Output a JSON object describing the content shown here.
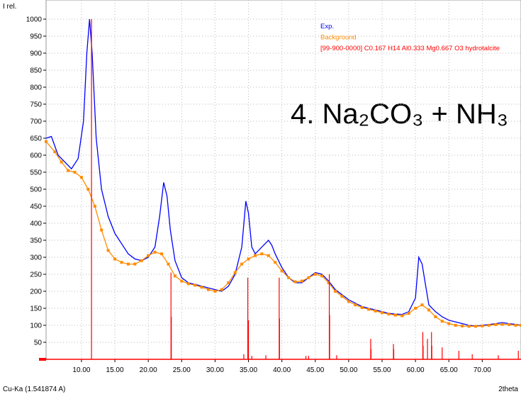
{
  "chart_data": {
    "type": "line",
    "y_label": "I rel.",
    "x_label": "2theta",
    "footer": "Cu-Ka (1.541874 A)",
    "annotation": "4. Na₂CO₃ + NH₃",
    "xlim": [
      4.7,
      75.8
    ],
    "ylim": [
      0,
      1000
    ],
    "xticks": [
      {
        "value": 10,
        "label": "10.00"
      },
      {
        "value": 15,
        "label": "15.00"
      },
      {
        "value": 20,
        "label": "20.00"
      },
      {
        "value": 25,
        "label": "25.00"
      },
      {
        "value": 30,
        "label": "30.00"
      },
      {
        "value": 35,
        "label": "35.00"
      },
      {
        "value": 40,
        "label": "40.00"
      },
      {
        "value": 45,
        "label": "45.00"
      },
      {
        "value": 50,
        "label": "50.00"
      },
      {
        "value": 55,
        "label": "55.00"
      },
      {
        "value": 60,
        "label": "60.00"
      },
      {
        "value": 65,
        "label": "65.00"
      },
      {
        "value": 70,
        "label": "70.00"
      }
    ],
    "yticks": [
      50,
      100,
      150,
      200,
      250,
      300,
      350,
      400,
      450,
      500,
      550,
      600,
      650,
      700,
      750,
      800,
      850,
      900,
      950,
      1000
    ],
    "grid": true,
    "legend": "top-right",
    "series": [
      {
        "name": "Exp.",
        "color": "#0000ff",
        "style": "line",
        "x": [
          4.7,
          5.5,
          6.5,
          7.5,
          8.5,
          9.5,
          10.3,
          10.8,
          11.2,
          11.6,
          12.2,
          13,
          14,
          15,
          16,
          17,
          18,
          19,
          20,
          21,
          21.7,
          22.3,
          22.8,
          23.3,
          24,
          25,
          26,
          27,
          28,
          29,
          30,
          31,
          32,
          33,
          34,
          34.6,
          35,
          35.5,
          36,
          37,
          38,
          38.5,
          39,
          40,
          41,
          42,
          43,
          44,
          45,
          46,
          47,
          48,
          49,
          50,
          51,
          52,
          53,
          54,
          55,
          56,
          57,
          58,
          59,
          60,
          60.5,
          61,
          61.5,
          62,
          63,
          64,
          65,
          66,
          67,
          68,
          69,
          70,
          71,
          72,
          73,
          74,
          75,
          75.8
        ],
        "values": [
          650,
          655,
          600,
          580,
          560,
          590,
          700,
          900,
          1000,
          900,
          650,
          500,
          420,
          370,
          340,
          310,
          295,
          290,
          300,
          330,
          420,
          520,
          480,
          380,
          290,
          240,
          225,
          220,
          215,
          210,
          205,
          200,
          215,
          250,
          330,
          465,
          430,
          330,
          310,
          330,
          350,
          335,
          310,
          270,
          240,
          225,
          225,
          240,
          255,
          250,
          230,
          205,
          190,
          175,
          165,
          155,
          150,
          145,
          140,
          135,
          133,
          132,
          140,
          180,
          300,
          280,
          220,
          160,
          140,
          125,
          115,
          110,
          105,
          100,
          98,
          100,
          102,
          105,
          108,
          105,
          103,
          100
        ]
      },
      {
        "name": "Background",
        "color": "#ff8c00",
        "style": "markers",
        "x": [
          4.7,
          6,
          7,
          8,
          9,
          10,
          11,
          12,
          13,
          14,
          15,
          16,
          17,
          18,
          19,
          20,
          21,
          22,
          23,
          24,
          25,
          26,
          27,
          28,
          29,
          30,
          31,
          32,
          33,
          34,
          35,
          36,
          37,
          38,
          39,
          40,
          41,
          42,
          43,
          44,
          45,
          46,
          47,
          48,
          49,
          50,
          51,
          52,
          53,
          54,
          55,
          56,
          57,
          58,
          59,
          60,
          61,
          62,
          63,
          64,
          65,
          66,
          67,
          68,
          69,
          70,
          71,
          72,
          73,
          74,
          75,
          75.8
        ],
        "values": [
          640,
          610,
          580,
          555,
          550,
          535,
          500,
          450,
          380,
          320,
          295,
          285,
          280,
          280,
          290,
          305,
          315,
          310,
          280,
          245,
          230,
          222,
          218,
          212,
          205,
          200,
          205,
          225,
          255,
          280,
          295,
          305,
          310,
          305,
          285,
          260,
          240,
          228,
          230,
          240,
          250,
          245,
          225,
          200,
          185,
          170,
          160,
          152,
          147,
          142,
          137,
          133,
          130,
          128,
          135,
          150,
          160,
          145,
          125,
          112,
          105,
          100,
          98,
          97,
          97,
          98,
          100,
          102,
          103,
          102,
          100,
          100
        ]
      },
      {
        "name": "[99-900-0000] C0.167 H14 Al0.333 Mg0.667 O3 hydrotalcite",
        "color": "#ff0000",
        "style": "sticks",
        "x": [
          11.5,
          23.4,
          23.45,
          34.3,
          34.9,
          35.0,
          35.5,
          37.6,
          39.6,
          39.65,
          43.6,
          44.0,
          47.1,
          47.15,
          48.2,
          53.3,
          53.35,
          56.7,
          56.75,
          61.1,
          61.15,
          61.8,
          62.4,
          62.45,
          64.0,
          66.5,
          68.5,
          72.4,
          75.4
        ],
        "values": [
          1000,
          255,
          125,
          15,
          240,
          115,
          10,
          12,
          240,
          120,
          10,
          10,
          250,
          130,
          12,
          60,
          30,
          45,
          30,
          80,
          40,
          60,
          80,
          40,
          35,
          25,
          15,
          12,
          25
        ]
      }
    ]
  }
}
